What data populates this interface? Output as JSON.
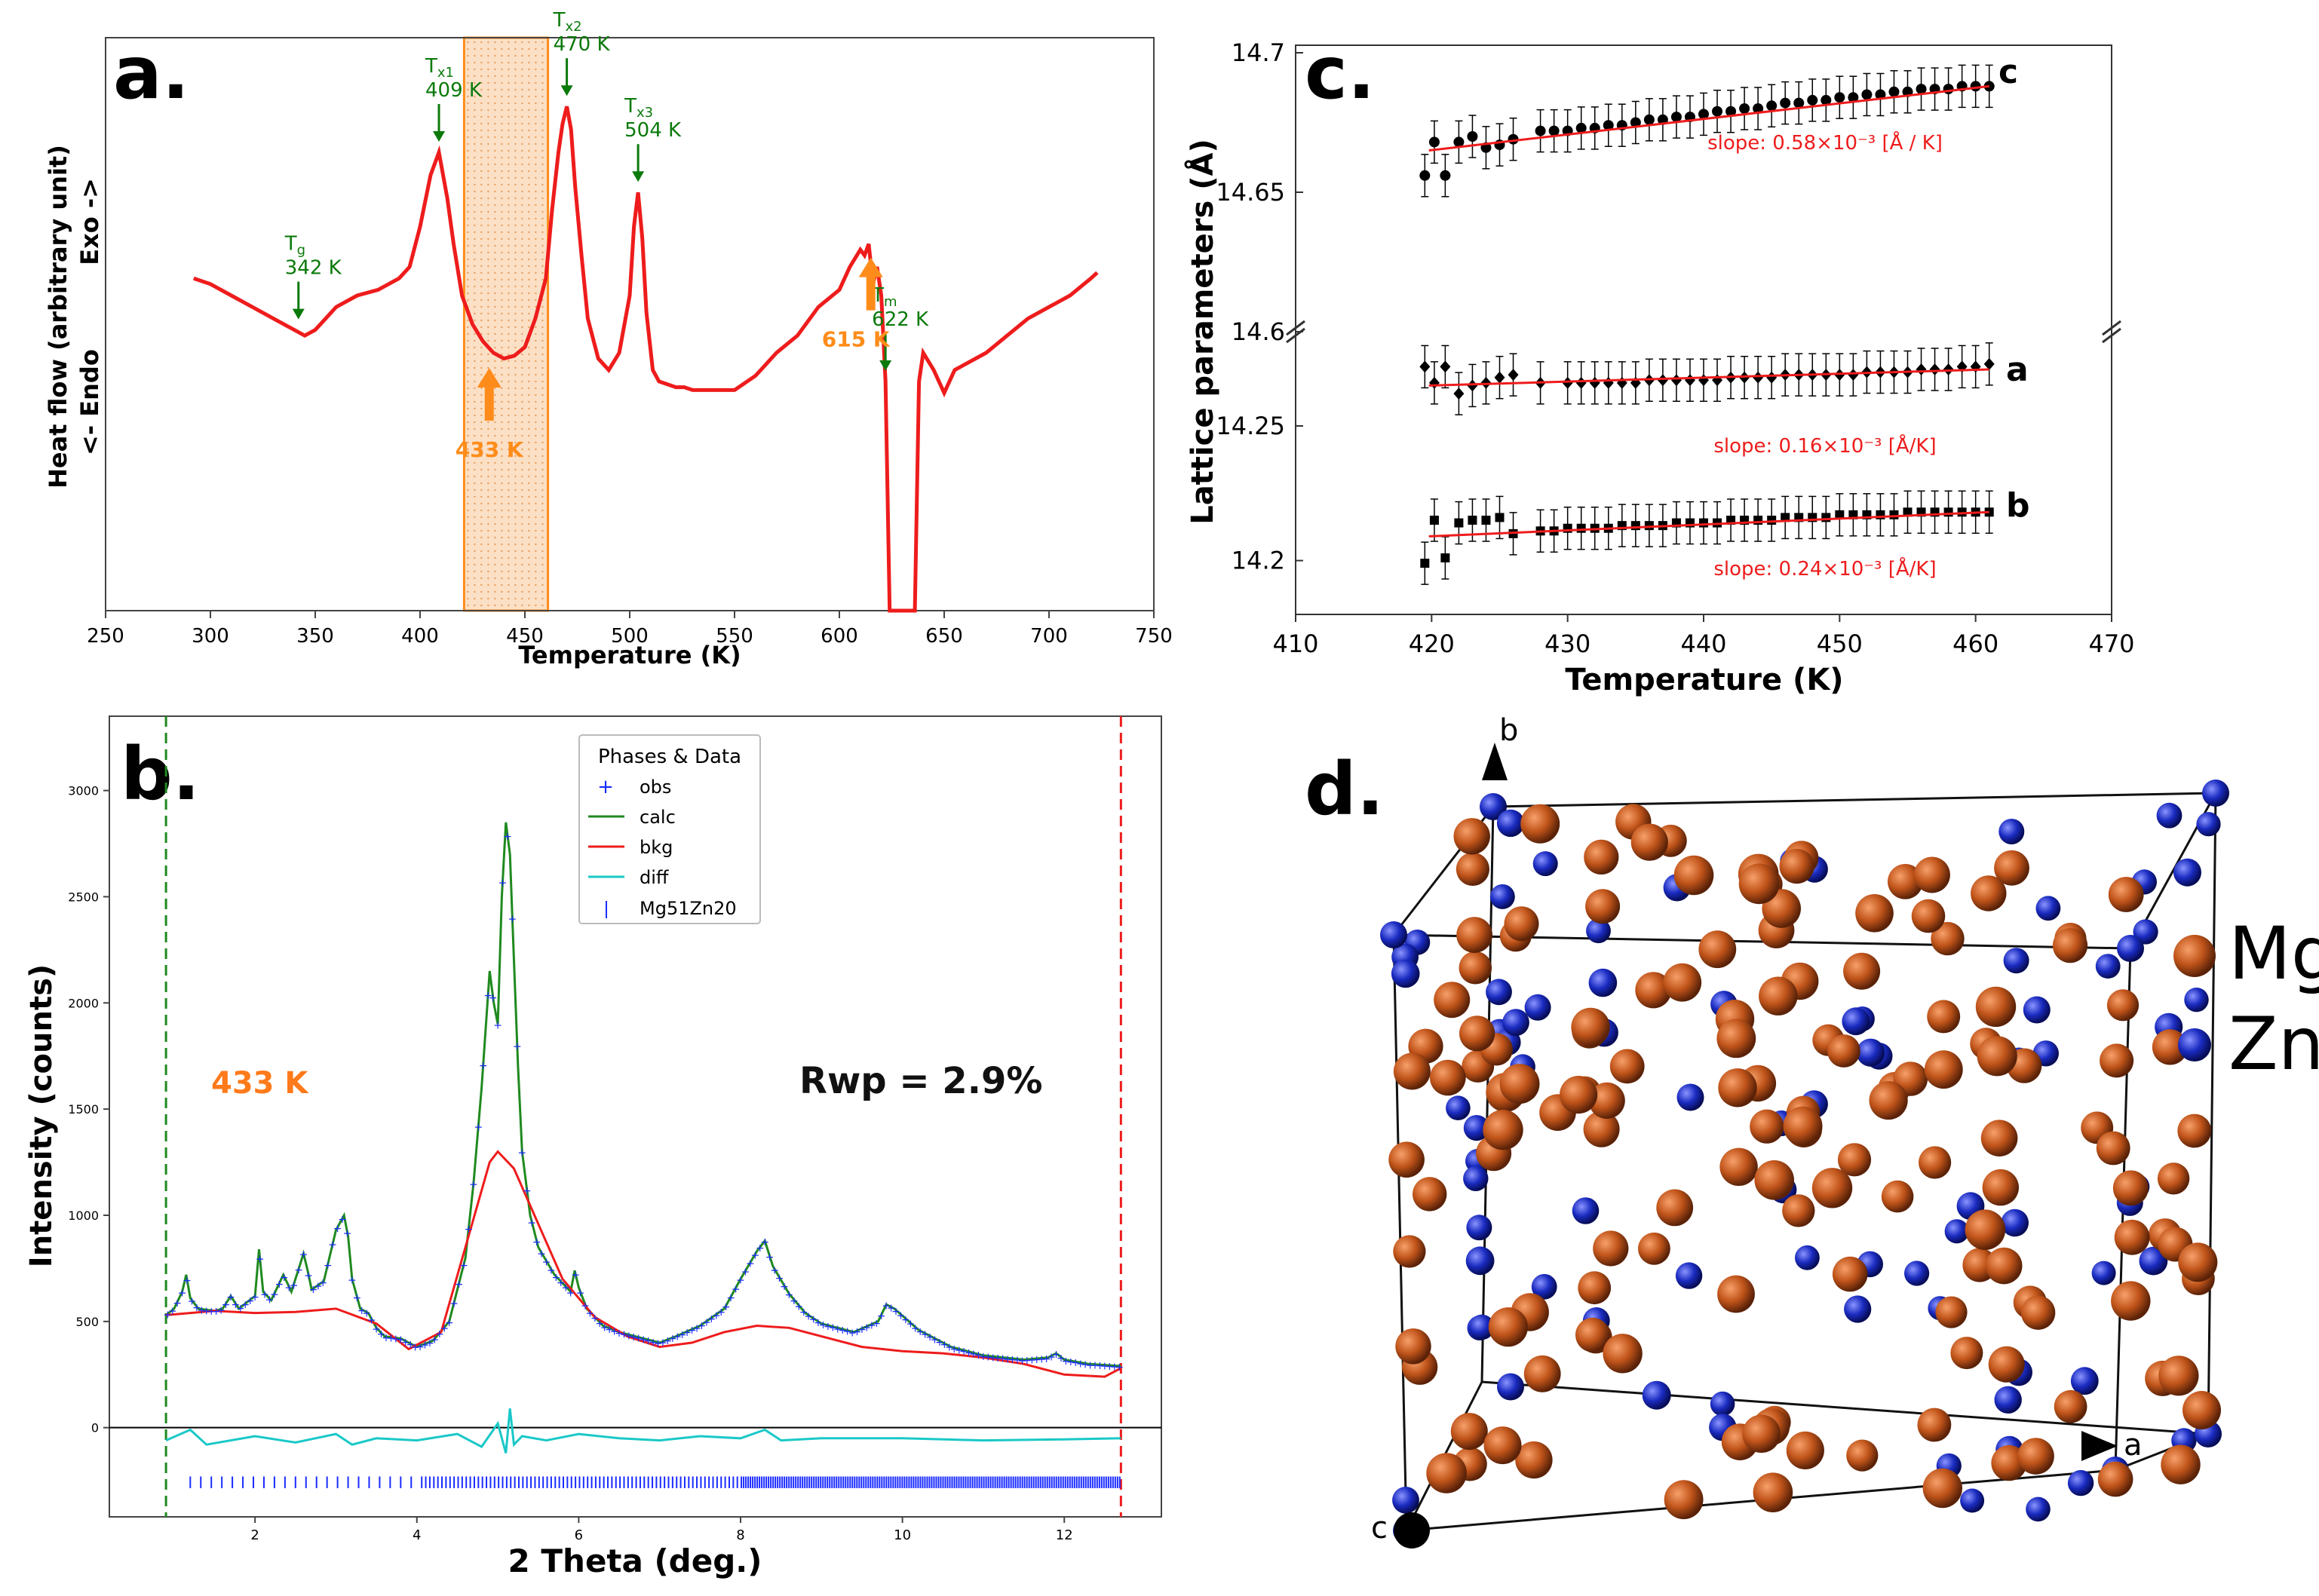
{
  "chart_data": [
    {
      "panel": "a.",
      "type": "line",
      "xlabel": "Temperature (K)",
      "ylabel": "Heat flow (arbitrary unit)",
      "ylabel2": "<- Endo          Exo ->",
      "xlim": [
        250,
        750
      ],
      "ylim": [
        0,
        100
      ],
      "xticks": [
        250,
        300,
        350,
        400,
        450,
        500,
        550,
        600,
        650,
        700,
        750
      ],
      "x": [
        292,
        300,
        310,
        320,
        330,
        340,
        345,
        350,
        355,
        360,
        370,
        380,
        390,
        395,
        400,
        405,
        409,
        413,
        416,
        420,
        425,
        430,
        435,
        440,
        445,
        450,
        455,
        460,
        463,
        466,
        468,
        470,
        472,
        474,
        477,
        480,
        485,
        490,
        495,
        500,
        502,
        504,
        506,
        508,
        511,
        514,
        518,
        522,
        526,
        530,
        540,
        550,
        560,
        570,
        580,
        590,
        600,
        605,
        610,
        612,
        614,
        616,
        618,
        620,
        622,
        624,
        626,
        628,
        630,
        634,
        636,
        638,
        640,
        645,
        650,
        655,
        660,
        670,
        680,
        690,
        700,
        710,
        720,
        723
      ],
      "y": [
        58,
        57,
        55,
        53,
        51,
        49,
        48,
        49,
        51,
        53,
        55,
        56,
        58,
        60,
        67,
        76,
        80,
        72,
        64,
        55,
        50,
        47,
        45,
        44,
        44.5,
        46,
        51,
        58,
        70,
        80,
        85,
        88,
        84,
        74,
        62,
        51,
        44,
        42,
        45,
        55,
        67,
        73,
        65,
        52,
        42,
        40,
        39.5,
        39,
        39,
        38.5,
        38.5,
        38.5,
        41,
        45,
        48,
        53,
        56,
        60,
        63,
        62,
        64,
        57,
        60,
        55,
        40,
        0,
        0,
        0,
        0,
        0,
        0,
        40,
        45,
        42,
        38,
        42,
        43,
        45,
        48,
        51,
        53,
        55,
        58,
        59
      ],
      "annotations": [
        {
          "label": "Tg",
          "value": "342 K",
          "x": 342
        },
        {
          "label": "Tx1",
          "value": "409 K",
          "x": 409
        },
        {
          "label": "Tx2",
          "value": "470 K",
          "x": 470
        },
        {
          "label": "Tx3",
          "value": "504 K",
          "x": 504
        },
        {
          "label": "Tm",
          "value": "622 K",
          "x": 622
        },
        {
          "label": "433 K",
          "x": 433,
          "color": "#ff8c1a"
        },
        {
          "label": "615 K",
          "x": 615,
          "color": "#ff8c1a"
        }
      ],
      "shaded_range": [
        421,
        461
      ]
    },
    {
      "panel": "b.",
      "type": "line",
      "xlabel": "2 Theta (deg.)",
      "ylabel": "Intensity (counts)",
      "xlim": [
        0.2,
        13.2
      ],
      "ylim": [
        -420,
        3350
      ],
      "xticks": [
        2,
        4,
        6,
        8,
        10,
        12
      ],
      "yticks": [
        0,
        500,
        1000,
        1500,
        2000,
        2500,
        3000
      ],
      "temperature_label": "433 K",
      "rwp_label": "Rwp = 2.9%",
      "legend": {
        "title": "Phases & Data",
        "entries": [
          "obs",
          "calc",
          "bkg",
          "diff",
          "Mg51Zn20"
        ]
      },
      "series": [
        {
          "name": "calc",
          "x": [
            0.9,
            1.0,
            1.1,
            1.15,
            1.2,
            1.3,
            1.5,
            1.6,
            1.7,
            1.8,
            2.0,
            2.05,
            2.1,
            2.2,
            2.35,
            2.4,
            2.45,
            2.6,
            2.65,
            2.7,
            2.85,
            3.0,
            3.1,
            3.15,
            3.2,
            3.3,
            3.4,
            3.5,
            3.6,
            3.8,
            4.0,
            4.2,
            4.4,
            4.6,
            4.7,
            4.8,
            4.9,
            4.95,
            5.0,
            5.05,
            5.1,
            5.15,
            5.2,
            5.25,
            5.3,
            5.4,
            5.5,
            5.7,
            5.9,
            5.95,
            6.0,
            6.1,
            6.3,
            6.5,
            6.8,
            7.0,
            7.2,
            7.5,
            7.8,
            8.0,
            8.2,
            8.3,
            8.4,
            8.6,
            8.8,
            9.0,
            9.4,
            9.7,
            9.8,
            9.9,
            10.2,
            10.6,
            11.0,
            11.5,
            11.8,
            11.9,
            12.0,
            12.3,
            12.7
          ],
          "values": [
            530,
            560,
            640,
            720,
            610,
            560,
            550,
            560,
            620,
            560,
            620,
            840,
            640,
            600,
            720,
            680,
            640,
            820,
            740,
            650,
            690,
            930,
            1000,
            900,
            700,
            560,
            540,
            470,
            430,
            420,
            380,
            410,
            500,
            800,
            1150,
            1600,
            2150,
            2000,
            1900,
            2500,
            2850,
            2700,
            2200,
            1700,
            1300,
            1000,
            850,
            720,
            640,
            740,
            660,
            560,
            480,
            450,
            420,
            400,
            430,
            480,
            560,
            700,
            830,
            880,
            760,
            630,
            540,
            490,
            450,
            500,
            580,
            560,
            460,
            380,
            340,
            320,
            330,
            350,
            320,
            300,
            290
          ]
        },
        {
          "name": "bkg",
          "x": [
            0.9,
            1.5,
            2.0,
            2.5,
            3.0,
            3.5,
            3.9,
            4.3,
            4.6,
            4.9,
            5.0,
            5.2,
            5.5,
            5.8,
            6.2,
            6.6,
            7.0,
            7.4,
            7.8,
            8.2,
            8.6,
            9.0,
            9.5,
            10.0,
            10.5,
            11.0,
            11.5,
            12.0,
            12.5,
            12.7
          ],
          "values": [
            530,
            550,
            540,
            545,
            560,
            490,
            370,
            450,
            850,
            1250,
            1300,
            1220,
            960,
            700,
            520,
            430,
            380,
            400,
            450,
            480,
            470,
            430,
            380,
            360,
            350,
            330,
            300,
            250,
            240,
            280
          ]
        },
        {
          "name": "diff",
          "x": [
            0.9,
            1.2,
            1.4,
            2.0,
            2.5,
            3.0,
            3.2,
            3.5,
            4.0,
            4.5,
            4.8,
            5.0,
            5.1,
            5.15,
            5.2,
            5.3,
            5.6,
            6.0,
            6.5,
            7.0,
            7.5,
            8.0,
            8.3,
            8.5,
            9.0,
            10.0,
            11.0,
            12.0,
            12.7
          ],
          "values": [
            -60,
            -10,
            -80,
            -40,
            -70,
            -30,
            -80,
            -50,
            -60,
            -30,
            -90,
            20,
            -120,
            90,
            -80,
            -40,
            -60,
            -30,
            -50,
            -60,
            -40,
            -50,
            -10,
            -60,
            -50,
            -50,
            -60,
            -55,
            -50
          ]
        }
      ],
      "tick_marks_label": "Mg51Zn20"
    },
    {
      "panel": "c.",
      "type": "scatter",
      "xlabel": "Temperature (K)",
      "ylabel": "Lattice parameters (Å)",
      "xlim": [
        410,
        470
      ],
      "xticks": [
        410,
        420,
        430,
        440,
        450,
        460,
        470
      ],
      "yticks": [
        "14.7",
        "14.65",
        "14.6",
        "14.25",
        "14.2"
      ],
      "series": [
        {
          "name": "c",
          "slope_label": "slope: 0.58×10⁻³ [Å / K]",
          "fit": [
            [
              419.8,
              14.665
            ],
            [
              461,
              14.688
            ]
          ],
          "ylim": [
            14.6,
            14.7
          ],
          "points": [
            [
              419.5,
              14.656
            ],
            [
              420.2,
              14.668
            ],
            [
              421,
              14.656
            ],
            [
              422,
              14.668
            ],
            [
              423,
              14.67
            ],
            [
              424,
              14.666
            ],
            [
              425,
              14.667
            ],
            [
              426,
              14.669
            ],
            [
              428,
              14.672
            ],
            [
              429,
              14.672
            ],
            [
              430,
              14.672
            ],
            [
              431,
              14.673
            ],
            [
              432,
              14.673
            ],
            [
              433,
              14.674
            ],
            [
              434,
              14.674
            ],
            [
              435,
              14.675
            ],
            [
              436,
              14.676
            ],
            [
              437,
              14.676
            ],
            [
              438,
              14.677
            ],
            [
              439,
              14.677
            ],
            [
              440,
              14.678
            ],
            [
              441,
              14.679
            ],
            [
              442,
              14.679
            ],
            [
              443,
              14.68
            ],
            [
              444,
              14.68
            ],
            [
              445,
              14.681
            ],
            [
              446,
              14.682
            ],
            [
              447,
              14.682
            ],
            [
              448,
              14.683
            ],
            [
              449,
              14.683
            ],
            [
              450,
              14.684
            ],
            [
              451,
              14.684
            ],
            [
              452,
              14.685
            ],
            [
              453,
              14.685
            ],
            [
              454,
              14.686
            ],
            [
              455,
              14.686
            ],
            [
              456,
              14.687
            ],
            [
              457,
              14.687
            ],
            [
              458,
              14.687
            ],
            [
              459,
              14.688
            ],
            [
              460,
              14.688
            ],
            [
              461,
              14.688
            ]
          ]
        },
        {
          "name": "a",
          "slope_label": "slope: 0.16×10⁻³ [Å/K]",
          "fit": [
            [
              419.8,
              14.265
            ],
            [
              461,
              14.271
            ]
          ],
          "ylim": [
            14.18,
            14.285
          ],
          "points": [
            [
              419.5,
              14.272
            ],
            [
              420.2,
              14.266
            ],
            [
              421,
              14.272
            ],
            [
              422,
              14.262
            ],
            [
              423,
              14.265
            ],
            [
              424,
              14.266
            ],
            [
              425,
              14.268
            ],
            [
              426,
              14.269
            ],
            [
              428,
              14.266
            ],
            [
              430,
              14.266
            ],
            [
              431,
              14.266
            ],
            [
              432,
              14.266
            ],
            [
              433,
              14.266
            ],
            [
              434,
              14.266
            ],
            [
              435,
              14.266
            ],
            [
              436,
              14.267
            ],
            [
              437,
              14.267
            ],
            [
              438,
              14.267
            ],
            [
              439,
              14.267
            ],
            [
              440,
              14.267
            ],
            [
              441,
              14.267
            ],
            [
              442,
              14.268
            ],
            [
              443,
              14.268
            ],
            [
              444,
              14.268
            ],
            [
              445,
              14.268
            ],
            [
              446,
              14.269
            ],
            [
              447,
              14.269
            ],
            [
              448,
              14.269
            ],
            [
              449,
              14.269
            ],
            [
              450,
              14.269
            ],
            [
              451,
              14.269
            ],
            [
              452,
              14.27
            ],
            [
              453,
              14.27
            ],
            [
              454,
              14.27
            ],
            [
              455,
              14.27
            ],
            [
              456,
              14.271
            ],
            [
              457,
              14.271
            ],
            [
              458,
              14.271
            ],
            [
              459,
              14.272
            ],
            [
              460,
              14.272
            ],
            [
              461,
              14.273
            ]
          ]
        },
        {
          "name": "b",
          "slope_label": "slope: 0.24×10⁻³ [Å/K]",
          "fit": [
            [
              419.8,
              14.209
            ],
            [
              461,
              14.218
            ]
          ],
          "ylim": [
            14.18,
            14.285
          ],
          "points": [
            [
              419.5,
              14.199
            ],
            [
              420.2,
              14.215
            ],
            [
              421,
              14.201
            ],
            [
              422,
              14.214
            ],
            [
              423,
              14.215
            ],
            [
              424,
              14.215
            ],
            [
              425,
              14.216
            ],
            [
              426,
              14.21
            ],
            [
              428,
              14.211
            ],
            [
              429,
              14.211
            ],
            [
              430,
              14.212
            ],
            [
              431,
              14.212
            ],
            [
              432,
              14.212
            ],
            [
              433,
              14.212
            ],
            [
              434,
              14.213
            ],
            [
              435,
              14.213
            ],
            [
              436,
              14.213
            ],
            [
              437,
              14.213
            ],
            [
              438,
              14.214
            ],
            [
              439,
              14.214
            ],
            [
              440,
              14.214
            ],
            [
              441,
              14.214
            ],
            [
              442,
              14.215
            ],
            [
              443,
              14.215
            ],
            [
              444,
              14.215
            ],
            [
              445,
              14.215
            ],
            [
              446,
              14.216
            ],
            [
              447,
              14.216
            ],
            [
              448,
              14.216
            ],
            [
              449,
              14.216
            ],
            [
              450,
              14.217
            ],
            [
              451,
              14.217
            ],
            [
              452,
              14.217
            ],
            [
              453,
              14.217
            ],
            [
              454,
              14.217
            ],
            [
              455,
              14.218
            ],
            [
              456,
              14.218
            ],
            [
              457,
              14.218
            ],
            [
              458,
              14.218
            ],
            [
              459,
              14.218
            ],
            [
              460,
              14.218
            ],
            [
              461,
              14.218
            ]
          ]
        }
      ]
    }
  ],
  "panel_d": {
    "label": "d.",
    "axes": [
      "a",
      "b",
      "c"
    ],
    "legend": [
      {
        "label": "Mg",
        "color": "#c0541a"
      },
      {
        "label": "Zn",
        "color": "#1a2bc0"
      }
    ],
    "mg_sites": 145,
    "zn_sites": 80
  }
}
